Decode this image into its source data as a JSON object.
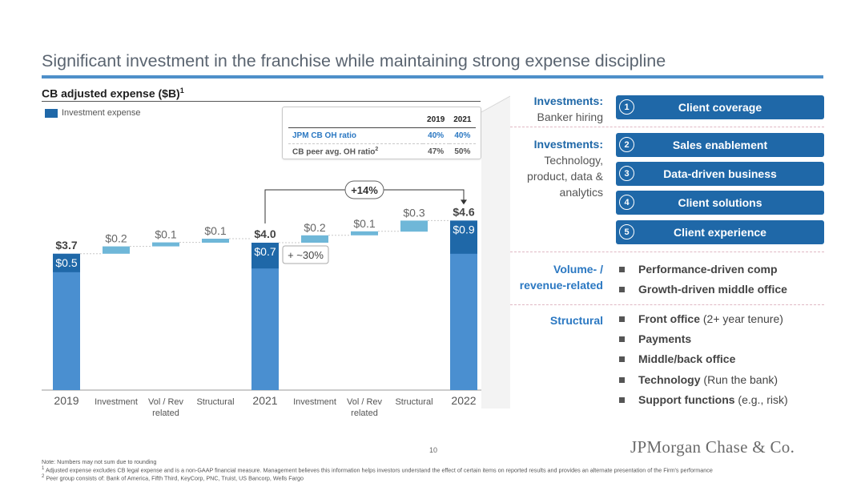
{
  "title": "Significant investment in the franchise while maintaining strong expense discipline",
  "subtitle": "CB adjusted expense ($B)",
  "subtitle_sup": "1",
  "legend_label": "Investment expense",
  "colors": {
    "primary_blue": "#1f68a8",
    "light_bar": "#4a8fd0",
    "step_bar": "#6fb7d8",
    "title_rule": "#4e8fc9"
  },
  "ratio_table": {
    "headers": [
      "",
      "2019",
      "2021"
    ],
    "rows": [
      {
        "label": "JPM CB OH ratio",
        "v2019": "40%",
        "v2021": "40%"
      },
      {
        "label": "CB peer avg. OH ratio",
        "sup": "2",
        "v2019": "47%",
        "v2021": "50%"
      }
    ]
  },
  "chart_data": {
    "type": "bar",
    "subtype": "waterfall",
    "unit": "$B",
    "categories": [
      "2019",
      "Investment",
      "Vol / Rev related",
      "Structural",
      "2021",
      "Investment",
      "Vol / Rev related",
      "Structural",
      "2022"
    ],
    "category_lines": [
      [
        "2019"
      ],
      [
        "Investment"
      ],
      [
        "Vol / Rev",
        "related"
      ],
      [
        "Structural"
      ],
      [
        "2021"
      ],
      [
        "Investment"
      ],
      [
        "Vol / Rev",
        "related"
      ],
      [
        "Structural"
      ],
      [
        "2022"
      ]
    ],
    "bars": [
      {
        "kind": "total",
        "value": 3.7,
        "label": "$3.7",
        "investment": 0.5,
        "investment_label": "$0.5"
      },
      {
        "kind": "step",
        "value": 0.2,
        "label": "$0.2"
      },
      {
        "kind": "step",
        "value": 0.1,
        "label": "$0.1"
      },
      {
        "kind": "step",
        "value": 0.1,
        "label": "$0.1"
      },
      {
        "kind": "total",
        "value": 4.0,
        "label": "$4.0",
        "investment": 0.7,
        "investment_label": "$0.7"
      },
      {
        "kind": "step",
        "value": 0.2,
        "label": "$0.2"
      },
      {
        "kind": "step",
        "value": 0.1,
        "label": "$0.1"
      },
      {
        "kind": "step",
        "value": 0.3,
        "label": "$0.3"
      },
      {
        "kind": "total",
        "value": 4.6,
        "label": "$4.6",
        "investment": 0.9,
        "investment_label": "$0.9"
      }
    ],
    "annotations": {
      "growth_label": "+14%",
      "investment_growth_label": "+ ~30%"
    }
  },
  "right_panel": {
    "investments1": {
      "bold": "Investments:",
      "text": [
        "Banker hiring"
      ]
    },
    "investments2": {
      "bold": "Investments:",
      "text": [
        "Technology,",
        "product, data &",
        "analytics"
      ]
    },
    "pills": [
      {
        "num": "1",
        "label": "Client coverage"
      },
      {
        "num": "2",
        "label": "Sales enablement"
      },
      {
        "num": "3",
        "label": "Data-driven business"
      },
      {
        "num": "4",
        "label": "Client solutions"
      },
      {
        "num": "5",
        "label": "Client experience"
      }
    ],
    "volume_label": [
      "Volume- /",
      "revenue-related"
    ],
    "volume_items": [
      {
        "bold": "Performance-driven comp",
        "rest": ""
      },
      {
        "bold": "Growth-driven middle office",
        "rest": ""
      }
    ],
    "structural_label": "Structural",
    "structural_items": [
      {
        "bold": "Front office",
        "rest": " (2+ year tenure)"
      },
      {
        "bold": "Payments",
        "rest": ""
      },
      {
        "bold": "Middle/back office",
        "rest": ""
      },
      {
        "bold": "Technology",
        "rest": " (Run the bank)"
      },
      {
        "bold": "Support functions",
        "rest": " (e.g., risk)"
      }
    ]
  },
  "page_number": "10",
  "logo_text": "JPMorgan Chase & Co.",
  "footnotes": {
    "note": "Note: Numbers may not sum due to rounding",
    "fn1_mark": "1",
    "fn1": " Adjusted expense excludes CB legal expense and is a non-GAAP financial measure. Management believes this information helps investors understand the effect of certain items on reported results and provides an alternate presentation of the Firm's performance",
    "fn2_mark": "2",
    "fn2": " Peer group consists of: Bank of America, Fifth Third, KeyCorp, PNC, Truist, US Bancorp, Wells Fargo"
  }
}
